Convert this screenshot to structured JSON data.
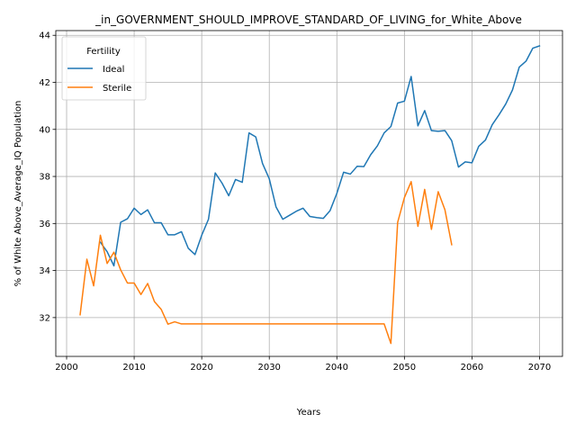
{
  "chart_data": {
    "type": "line",
    "title": "_in_GOVERNMENT_SHOULD_IMPROVE_STANDARD_OF_LIVING_for_White_Above",
    "xlabel": "Years",
    "ylabel": "% of White Above_Average_IQ Population",
    "xlim": [
      1998.4,
      2073.4
    ],
    "ylim": [
      30.35,
      44.2
    ],
    "xticks": [
      2000,
      2010,
      2020,
      2030,
      2040,
      2050,
      2060,
      2070
    ],
    "yticks": [
      32,
      34,
      36,
      38,
      40,
      42,
      44
    ],
    "grid": true,
    "legend": {
      "title": "Fertility",
      "placement": "top-left"
    },
    "series": [
      {
        "name": "Ideal",
        "color": "#1f77b4",
        "x": [
          2005,
          2006,
          2007,
          2008,
          2009,
          2010,
          2011,
          2012,
          2013,
          2014,
          2015,
          2016,
          2017,
          2018,
          2019,
          2020,
          2021,
          2022,
          2023,
          2024,
          2025,
          2026,
          2027,
          2028,
          2029,
          2030,
          2031,
          2032,
          2033,
          2034,
          2035,
          2036,
          2037,
          2038,
          2039,
          2040,
          2041,
          2042,
          2043,
          2044,
          2045,
          2046,
          2047,
          2048,
          2049,
          2050,
          2051,
          2052,
          2053,
          2054,
          2055,
          2056,
          2057,
          2058,
          2059,
          2060,
          2061,
          2062,
          2063,
          2064,
          2065,
          2066,
          2067,
          2068,
          2069,
          2070
        ],
        "y": [
          35.2,
          34.8,
          34.2,
          36.05,
          36.2,
          36.65,
          36.38,
          36.58,
          36.03,
          36.03,
          35.52,
          35.52,
          35.65,
          34.95,
          34.68,
          35.5,
          36.18,
          38.15,
          37.72,
          37.18,
          37.87,
          37.75,
          39.85,
          39.68,
          38.55,
          37.9,
          36.7,
          36.18,
          36.35,
          36.52,
          36.65,
          36.3,
          36.25,
          36.22,
          36.55,
          37.28,
          38.18,
          38.1,
          38.43,
          38.42,
          38.92,
          39.3,
          39.85,
          40.12,
          41.12,
          41.2,
          42.25,
          40.15,
          40.8,
          39.95,
          39.92,
          39.95,
          39.52,
          38.4,
          38.62,
          38.58,
          39.28,
          39.55,
          40.2,
          40.62,
          41.08,
          41.68,
          42.65,
          42.9,
          43.45,
          43.55
        ]
      },
      {
        "name": "Sterile",
        "color": "#ff7f0e",
        "x": [
          2002,
          2003,
          2004,
          2005,
          2006,
          2007,
          2008,
          2009,
          2010,
          2011,
          2012,
          2013,
          2014,
          2015,
          2016,
          2017,
          2018,
          2019,
          2020,
          2021,
          2022,
          2023,
          2024,
          2025,
          2026,
          2027,
          2028,
          2029,
          2030,
          2031,
          2032,
          2033,
          2034,
          2035,
          2036,
          2037,
          2038,
          2039,
          2040,
          2041,
          2042,
          2043,
          2044,
          2045,
          2046,
          2047,
          2048,
          2049,
          2050,
          2051,
          2052,
          2053,
          2054,
          2055,
          2056,
          2057
        ],
        "y": [
          32.12,
          34.48,
          33.35,
          35.5,
          34.3,
          34.78,
          34.03,
          33.47,
          33.47,
          32.98,
          33.45,
          32.68,
          32.35,
          31.72,
          31.82,
          31.73,
          31.73,
          31.73,
          31.73,
          31.73,
          31.73,
          31.73,
          31.73,
          31.73,
          31.73,
          31.73,
          31.73,
          31.73,
          31.73,
          31.73,
          31.73,
          31.73,
          31.73,
          31.73,
          31.73,
          31.73,
          31.73,
          31.73,
          31.73,
          31.73,
          31.73,
          31.73,
          31.73,
          31.73,
          31.73,
          31.73,
          30.9,
          36.05,
          37.1,
          37.78,
          35.88,
          37.45,
          35.75,
          37.35,
          36.58,
          35.1
        ]
      }
    ]
  }
}
